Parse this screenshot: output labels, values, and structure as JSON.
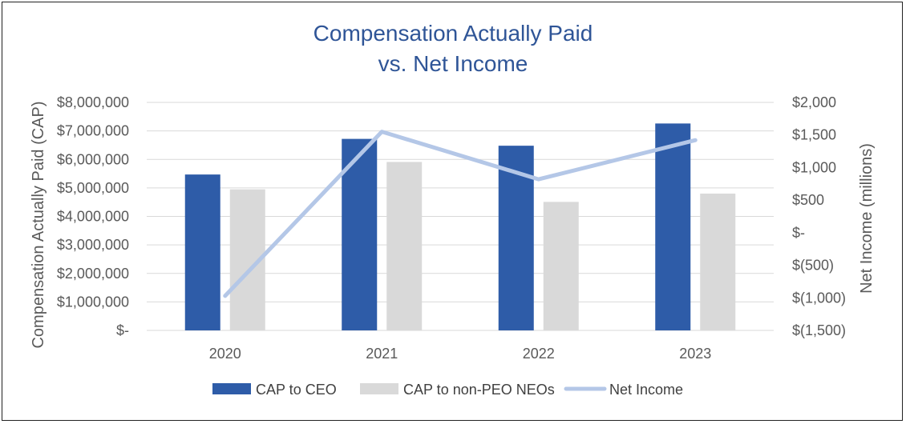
{
  "chart_data": {
    "type": "bar",
    "title_lines": [
      "Compensation Actually Paid",
      "vs. Net Income"
    ],
    "categories": [
      "2020",
      "2021",
      "2022",
      "2023"
    ],
    "series": [
      {
        "name": "CAP to CEO",
        "type": "bar",
        "axis": "left",
        "color": "#2e5ca8",
        "values": [
          5470000,
          6720000,
          6480000,
          7260000
        ]
      },
      {
        "name": "CAP to non-PEO NEOs",
        "type": "bar",
        "axis": "left",
        "color": "#d9d9d9",
        "values": [
          4950000,
          5910000,
          4510000,
          4800000
        ]
      },
      {
        "name": "Net Income",
        "type": "line",
        "axis": "right",
        "color": "#b4c7e7",
        "values": [
          -970,
          1550,
          820,
          1420
        ]
      }
    ],
    "ylabel": "Compensation Actually Paid (CAP)",
    "ylabel_right": "Net Income (millions)",
    "ylim": [
      0,
      8000000
    ],
    "ylim_right": [
      -1500,
      2000
    ],
    "yticks": [
      "$-",
      "$1,000,000",
      "$2,000,000",
      "$3,000,000",
      "$4,000,000",
      "$5,000,000",
      "$6,000,000",
      "$7,000,000",
      "$8,000,000"
    ],
    "yticks_right": [
      "$(1,500)",
      "$(1,000)",
      "$(500)",
      "$-",
      "$500",
      "$1,000",
      "$1,500",
      "$2,000"
    ],
    "grid": true,
    "legend": "bottom"
  }
}
